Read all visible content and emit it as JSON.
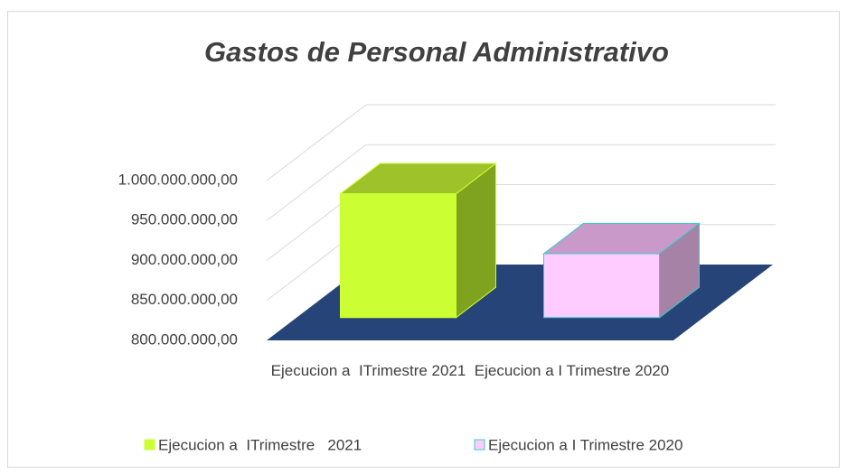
{
  "chart_data": {
    "type": "bar3d",
    "title": "Gastos de Personal Administrativo",
    "categories": [
      "Ejecucion a  ITrimestre 2021",
      "Ejecucion a I Trimestre 2020"
    ],
    "values": [
      955000000,
      880000000
    ],
    "colors": [
      {
        "front": "#ccff33",
        "top": "#9dc22a",
        "side": "#7fa31f",
        "edge": "#ccff33"
      },
      {
        "front": "#ffccff",
        "top": "#c99ac9",
        "side": "#a682a6",
        "edge": "#33cccc"
      }
    ],
    "legend": [
      "Ejecucion a  ITrimestre   2021",
      "Ejecucion a I Trimestre 2020"
    ],
    "floor_color": "#264478",
    "ylim": [
      800000000,
      1000000000
    ],
    "yticks": [
      {
        "value": 800000000,
        "label": "800.000.000,00"
      },
      {
        "value": 850000000,
        "label": "850.000.000,00"
      },
      {
        "value": 900000000,
        "label": "900.000.000,00"
      },
      {
        "value": 950000000,
        "label": "950.000.000,00"
      },
      {
        "value": 1000000000,
        "label": "1.000.000.000,00"
      }
    ],
    "grid": true
  }
}
